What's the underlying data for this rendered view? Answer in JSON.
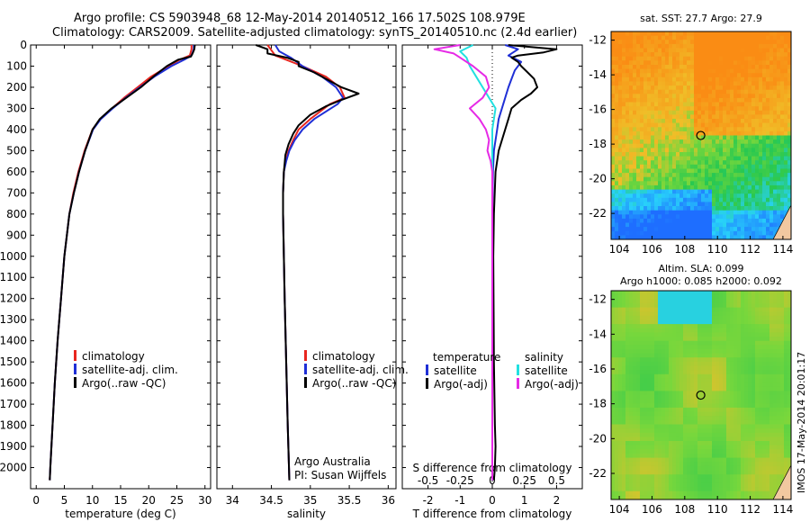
{
  "header": {
    "line1": "Argo profile: CS 5903948_68 12-May-2014 20140512_166 17.502S 108.979E",
    "line2": "Climatology: CARS2009. Satellite-adjusted climatology: synTS_20140510.nc (2.4d earlier)"
  },
  "timestamp": "IMOS 17-May-2014 20:01:17",
  "colors": {
    "climatology": "#e8261f",
    "satellite": "#1f2fd6",
    "argo": "#000000",
    "sat_salinity": "#22e0e0",
    "argo_salinity": "#e62ae6"
  },
  "chart_data": [
    {
      "type": "line",
      "xlabel": "temperature (deg C)",
      "ylim": [
        2100,
        0
      ],
      "xlim": [
        -1,
        31
      ],
      "xticks": [
        0,
        5,
        10,
        15,
        20,
        25,
        30
      ],
      "yticks": [
        0,
        100,
        200,
        300,
        400,
        500,
        600,
        700,
        800,
        900,
        1000,
        1100,
        1200,
        1300,
        1400,
        1500,
        1600,
        1700,
        1800,
        1900,
        2000
      ],
      "legend": [
        "climatology",
        "satellite-adj. clim.",
        "Argo(..raw -QC)"
      ],
      "series": [
        {
          "name": "climatology",
          "color": "#e8261f",
          "depth": [
            0,
            20,
            50,
            70,
            100,
            150,
            200,
            250,
            300,
            350,
            400,
            500,
            600,
            700,
            800,
            1000,
            1200,
            1400,
            1600,
            1800,
            2000,
            2060
          ],
          "values": [
            27.6,
            27.6,
            27.3,
            25.5,
            23.5,
            20.4,
            18.0,
            15.6,
            13.5,
            11.4,
            10.0,
            8.6,
            7.5,
            6.6,
            5.9,
            5.0,
            4.4,
            3.8,
            3.3,
            2.9,
            2.5,
            2.4
          ]
        },
        {
          "name": "satellite-adj. clim.",
          "color": "#1f2fd6",
          "depth": [
            0,
            20,
            50,
            70,
            100,
            150,
            200,
            250,
            300,
            350,
            400,
            500,
            600,
            700,
            800,
            1000,
            1200,
            1400,
            1600,
            1800,
            2000,
            2060
          ],
          "values": [
            28.0,
            28.0,
            27.6,
            26.3,
            24.0,
            21.0,
            18.4,
            15.9,
            13.6,
            11.5,
            10.1,
            8.7,
            7.6,
            6.7,
            5.9,
            5.0,
            4.4,
            3.8,
            3.3,
            2.9,
            2.5,
            2.4
          ]
        },
        {
          "name": "Argo(..raw -QC)",
          "color": "#000000",
          "depth": [
            0,
            20,
            40,
            55,
            70,
            100,
            150,
            200,
            250,
            300,
            350,
            400,
            500,
            600,
            700,
            800,
            1000,
            1200,
            1400,
            1600,
            1800,
            2000,
            2060
          ],
          "values": [
            28.2,
            28.1,
            27.8,
            27.5,
            25.2,
            23.2,
            20.8,
            18.6,
            16.0,
            13.4,
            11.3,
            10.0,
            8.7,
            7.6,
            6.7,
            5.9,
            5.0,
            4.4,
            3.8,
            3.3,
            2.9,
            2.5,
            2.4
          ]
        }
      ]
    },
    {
      "type": "line",
      "xlabel": "salinity",
      "ylim": [
        2100,
        0
      ],
      "xlim": [
        33.8,
        36.1
      ],
      "xticks": [
        34,
        34.5,
        35,
        35.5,
        36
      ],
      "legend": [
        "climatology",
        "satellite-adj. clim.",
        "Argo(..raw -QC)"
      ],
      "annotation": [
        "Argo Australia",
        "PI: Susan Wijffels"
      ],
      "series": [
        {
          "name": "climatology",
          "color": "#e8261f",
          "depth": [
            0,
            50,
            100,
            150,
            200,
            250,
            280,
            350,
            400,
            450,
            500,
            550,
            600,
            700,
            800,
            1000,
            1200,
            1500,
            1800,
            2060
          ],
          "values": [
            34.45,
            34.55,
            34.9,
            35.2,
            35.38,
            35.44,
            35.25,
            35.0,
            34.85,
            34.78,
            34.72,
            34.68,
            34.66,
            34.65,
            34.65,
            34.66,
            34.67,
            34.69,
            34.71,
            34.73
          ]
        },
        {
          "name": "satellite-adj. clim.",
          "color": "#1f2fd6",
          "depth": [
            0,
            30,
            60,
            100,
            150,
            200,
            250,
            280,
            350,
            400,
            450,
            500,
            550,
            600,
            700,
            800,
            1000,
            1200,
            1500,
            1800,
            2060
          ],
          "values": [
            34.55,
            34.6,
            34.75,
            34.9,
            35.15,
            35.33,
            35.42,
            35.35,
            35.05,
            34.9,
            34.8,
            34.73,
            34.69,
            34.66,
            34.65,
            34.65,
            34.66,
            34.67,
            34.69,
            34.71,
            34.73
          ]
        },
        {
          "name": "Argo(..raw -QC)",
          "color": "#000000",
          "depth": [
            0,
            20,
            40,
            60,
            80,
            100,
            130,
            160,
            200,
            230,
            260,
            290,
            330,
            380,
            420,
            470,
            520,
            560,
            600,
            700,
            800,
            1000,
            1200,
            1500,
            1800,
            2060
          ],
          "values": [
            34.3,
            34.45,
            34.45,
            34.7,
            34.85,
            34.85,
            35.05,
            35.2,
            35.4,
            35.62,
            35.4,
            35.2,
            35.0,
            34.85,
            34.78,
            34.72,
            34.68,
            34.67,
            34.66,
            34.65,
            34.65,
            34.66,
            34.67,
            34.69,
            34.71,
            34.73
          ]
        }
      ]
    },
    {
      "type": "line",
      "xlabel": "T difference from climatology",
      "xlabel_top": "S difference from climatology",
      "ylim": [
        2100,
        0
      ],
      "xlim": [
        -2.8,
        2.8
      ],
      "xticks": [
        -2,
        -1,
        0,
        1,
        2
      ],
      "xticklabels_top": [
        "-0.5",
        "-0.25",
        "0",
        "0.25",
        "0.5"
      ],
      "legend_left": {
        "heading": "temperature",
        "items": [
          "satellite",
          "Argo(-adj)"
        ]
      },
      "legend_right": {
        "heading": "salinity",
        "items": [
          "satellite",
          "Argo(-adj)"
        ]
      },
      "series": [
        {
          "name": "temperature satellite",
          "color": "#1f2fd6",
          "depth": [
            0,
            20,
            50,
            80,
            120,
            160,
            200,
            250,
            300,
            350,
            400,
            450,
            500,
            600,
            800,
            1000,
            1500,
            2060
          ],
          "values": [
            0.4,
            0.8,
            0.5,
            0.9,
            0.7,
            0.6,
            0.5,
            0.4,
            0.3,
            0.2,
            0.15,
            0.1,
            0.05,
            0.02,
            0.0,
            0.0,
            0.0,
            0.0
          ]
        },
        {
          "name": "temperature Argo(-adj)",
          "color": "#000000",
          "depth": [
            0,
            10,
            20,
            35,
            50,
            60,
            80,
            100,
            130,
            160,
            200,
            230,
            260,
            300,
            350,
            400,
            500,
            600,
            800,
            1000,
            1500,
            1800,
            1900,
            2000,
            2060
          ],
          "values": [
            0.5,
            1.2,
            2.0,
            1.6,
            0.8,
            0.6,
            0.8,
            0.9,
            1.1,
            1.3,
            1.4,
            1.2,
            0.9,
            0.6,
            0.5,
            0.4,
            0.2,
            0.1,
            0.05,
            0.03,
            0.05,
            0.08,
            0.1,
            0.08,
            0.05
          ]
        },
        {
          "name": "salinity satellite",
          "color": "#22e0e0",
          "depth": [
            0,
            30,
            60,
            100,
            150,
            200,
            250,
            300,
            350,
            400,
            500,
            600,
            800,
            1000,
            1500,
            2060
          ],
          "values": [
            -0.6,
            -1.0,
            -0.8,
            -0.7,
            -0.5,
            -0.3,
            -0.1,
            0.1,
            0.05,
            0.0,
            0.0,
            0.0,
            0.0,
            0.0,
            0.0,
            0.0
          ]
        },
        {
          "name": "salinity Argo(-adj)",
          "color": "#e62ae6",
          "depth": [
            0,
            20,
            40,
            60,
            100,
            150,
            200,
            250,
            300,
            350,
            400,
            450,
            500,
            550,
            600,
            800,
            1000,
            1500,
            2060
          ],
          "values": [
            -1.0,
            -1.8,
            -1.2,
            -1.0,
            -0.6,
            -0.2,
            -0.1,
            -0.3,
            -0.7,
            -0.4,
            -0.2,
            -0.1,
            -0.15,
            -0.05,
            0.0,
            0.0,
            0.0,
            0.0,
            0.0
          ]
        }
      ]
    },
    {
      "type": "heatmap",
      "title": "sat. SST: 27.7  Argo: 27.9",
      "xticks": [
        104,
        106,
        108,
        110,
        112,
        114
      ],
      "yticks": [
        -12,
        -14,
        -16,
        -18,
        -20,
        -22
      ],
      "xlim": [
        103.5,
        114.5
      ],
      "ylim": [
        -23.5,
        -11.5
      ],
      "marker": [
        108.979,
        -17.502
      ]
    },
    {
      "type": "heatmap",
      "title": "Altim. SLA: 0.099",
      "subtitle": "Argo h1000: 0.085 h2000: 0.092",
      "xticks": [
        104,
        106,
        108,
        110,
        112,
        114
      ],
      "yticks": [
        -12,
        -14,
        -16,
        -18,
        -20,
        -22
      ],
      "xlim": [
        103.5,
        114.5
      ],
      "ylim": [
        -23.5,
        -11.5
      ],
      "marker": [
        108.979,
        -17.502
      ]
    }
  ]
}
